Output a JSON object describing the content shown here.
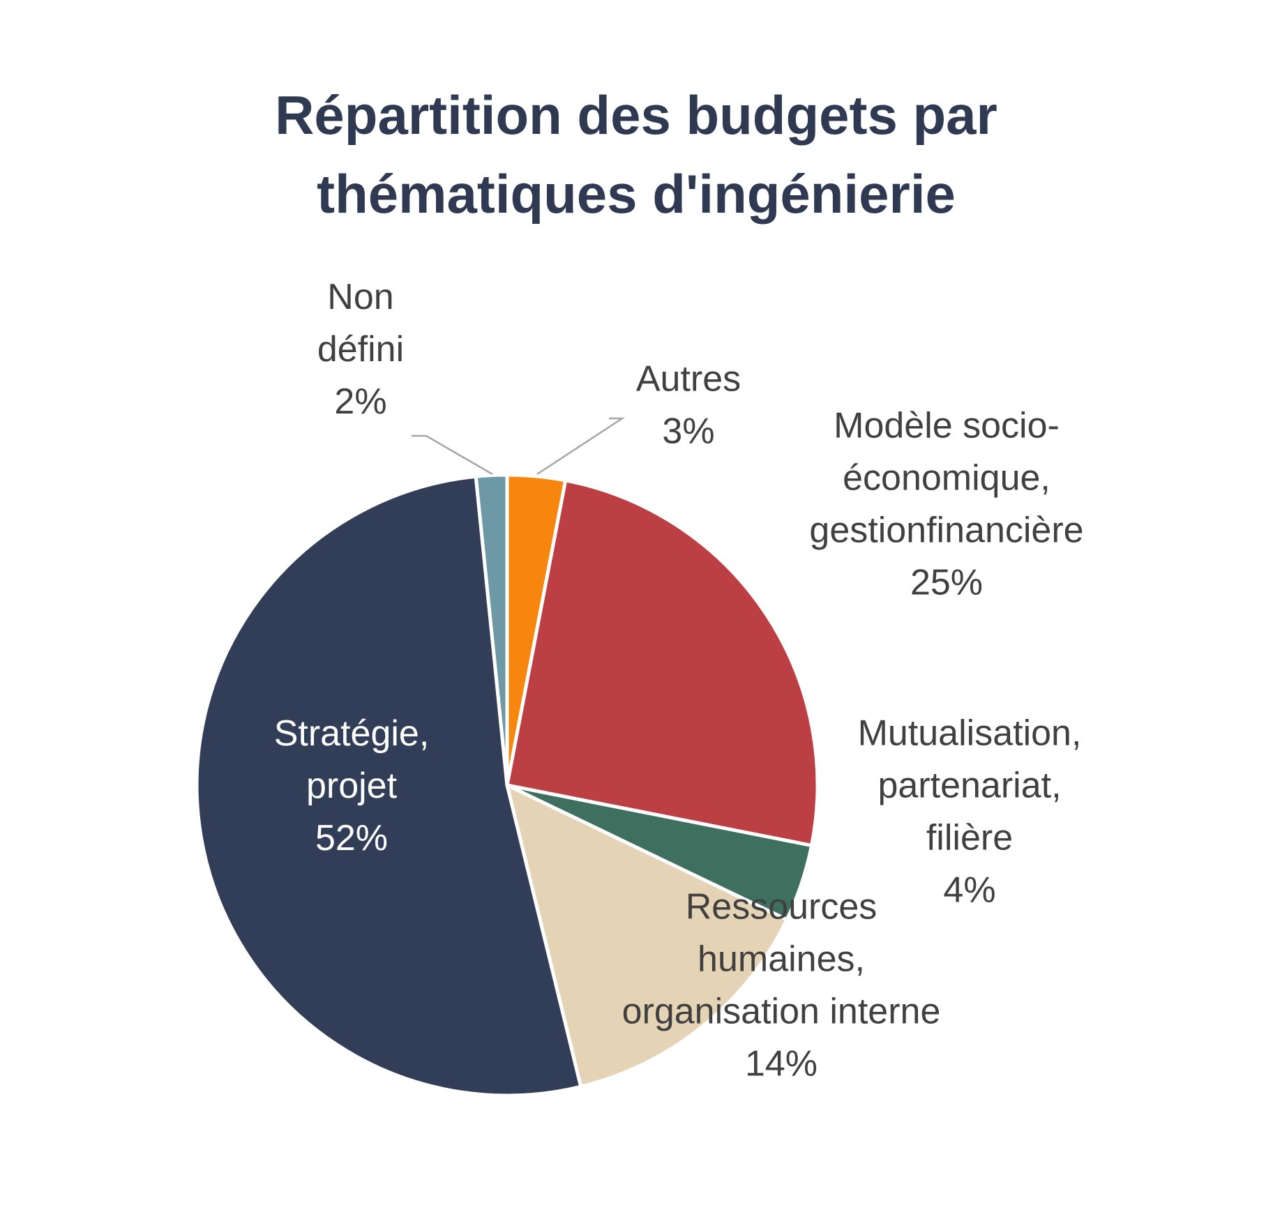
{
  "chart_data": {
    "type": "pie",
    "title_lines": [
      "Répartition des budgets par",
      "thématiques d'ingénierie"
    ],
    "slices": [
      {
        "label_lines": [
          "Autres"
        ],
        "pct_label": "3%",
        "value": 3,
        "color": "#f7860f"
      },
      {
        "label_lines": [
          "Modèle socio-",
          "économique,",
          "gestionfinancière"
        ],
        "pct_label": "25%",
        "value": 25,
        "color": "#bc4043"
      },
      {
        "label_lines": [
          "Mutualisation,",
          "partenariat,",
          "filière"
        ],
        "pct_label": "4%",
        "value": 4,
        "color": "#3f6f5e"
      },
      {
        "label_lines": [
          "Ressources",
          "humaines,",
          "organisation interne"
        ],
        "pct_label": "14%",
        "value": 14,
        "color": "#e5d3b6"
      },
      {
        "label_lines": [
          "Stratégie,",
          "projet"
        ],
        "pct_label": "52%",
        "value": 52,
        "color": "#323d57"
      },
      {
        "label_lines": [
          "Non",
          "défini"
        ],
        "pct_label": "2%",
        "value": 1.6,
        "color": "#6f98a6"
      }
    ],
    "start_angle": "12 o'clock",
    "direction": "clockwise",
    "legend": "none",
    "data_labels": "category name and percentage"
  }
}
